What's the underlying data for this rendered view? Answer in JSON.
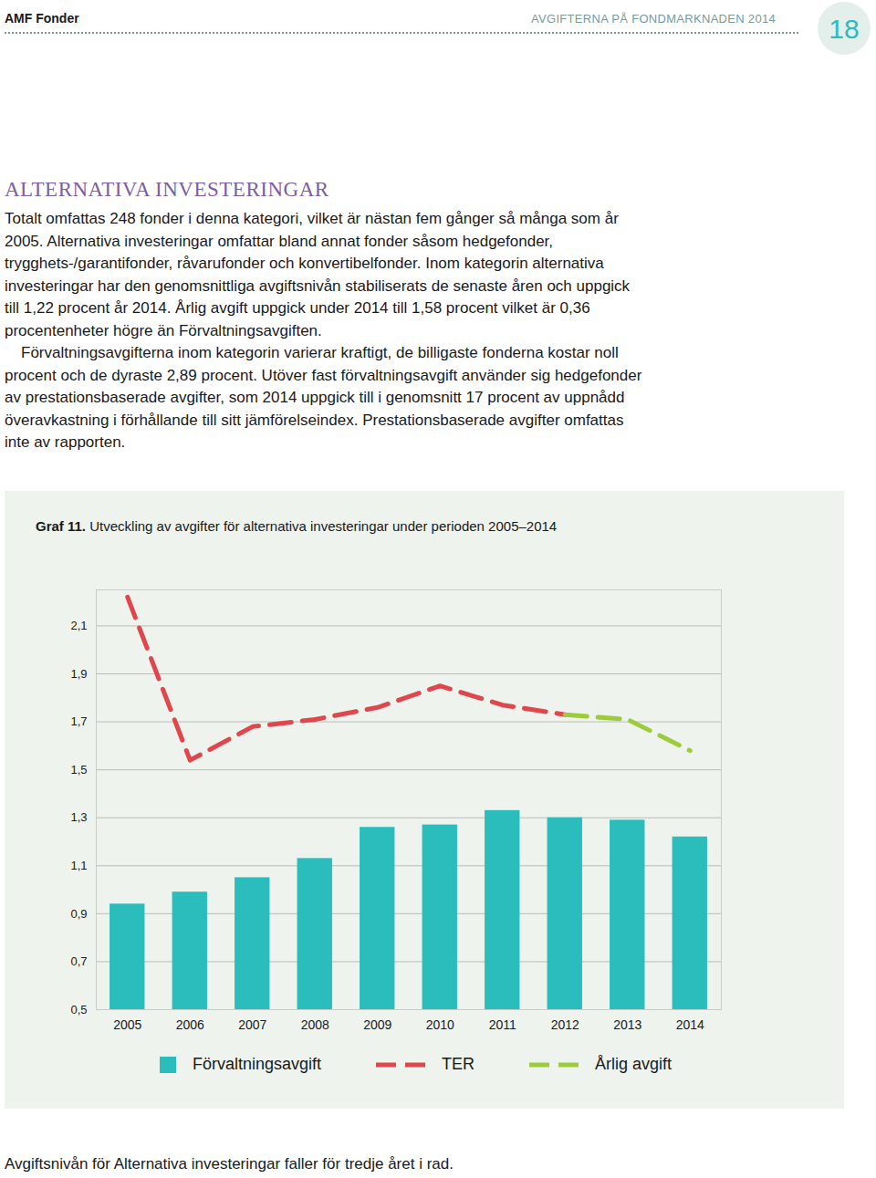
{
  "header": {
    "left": "AMF Fonder",
    "right": "AVGIFTERNA PÅ FONDMARKNADEN 2014",
    "page": "18"
  },
  "heading": "ALTERNATIVA INVESTERINGAR",
  "paragraphs": [
    "Totalt omfattas 248 fonder i denna kategori, vilket är nästan fem gånger så många som år 2005. Alternativa investeringar omfattar bland annat fonder såsom hedgefonder, trygghets-/garantifonder, råvarufonder och konvertibelfonder. Inom kategorin alternativa investeringar har den genomsnittliga avgiftsnivån stabiliserats de senaste åren och uppgick till 1,22 procent år 2014. Årlig avgift uppgick under 2014 till 1,58 procent vilket är 0,36 procentenheter högre än Förvaltningsavgiften.",
    "Förvaltningsavgifterna inom kategorin varierar kraftigt, de billigaste fonderna kostar noll procent och de dyraste 2,89 procent. Utöver fast förvaltningsavgift använder sig hedgefonder av prestationsbaserade avgifter, som 2014 uppgick till i genomsnitt 17 procent av uppnådd överavkastning i förhållande till sitt jämförelseindex. Prestationsbaserade avgifter omfattas inte av rapporten."
  ],
  "chart_data": {
    "type": "bar",
    "title": "Graf 11.",
    "subtitle": "Utveckling av avgifter för alternativa investeringar under perioden 2005–2014",
    "categories": [
      "2005",
      "2006",
      "2007",
      "2008",
      "2009",
      "2010",
      "2011",
      "2012",
      "2013",
      "2014"
    ],
    "series": [
      {
        "name": "Förvaltningsavgift",
        "type": "bar",
        "color": "#2bbcbc",
        "values": [
          0.94,
          0.99,
          1.05,
          1.13,
          1.26,
          1.27,
          1.33,
          1.3,
          1.29,
          1.22
        ]
      },
      {
        "name": "TER",
        "type": "line",
        "line_style": "dashed",
        "color": "#e0474c",
        "values": [
          2.22,
          1.54,
          1.68,
          1.71,
          1.76,
          1.85,
          1.77,
          1.73,
          null,
          null
        ]
      },
      {
        "name": "Årlig avgift",
        "type": "line",
        "line_style": "dashed",
        "color": "#9ccc3c",
        "values": [
          null,
          null,
          null,
          null,
          null,
          null,
          null,
          1.73,
          1.71,
          1.58
        ]
      }
    ],
    "ylim": [
      0.5,
      2.25
    ],
    "yticks": [
      {
        "value": 0.5,
        "label": "0,5"
      },
      {
        "value": 0.7,
        "label": "0,7"
      },
      {
        "value": 0.9,
        "label": "0,9"
      },
      {
        "value": 1.1,
        "label": "1,1"
      },
      {
        "value": 1.3,
        "label": "1,3"
      },
      {
        "value": 1.5,
        "label": "1,5"
      },
      {
        "value": 1.7,
        "label": "1,7"
      },
      {
        "value": 1.9,
        "label": "1,9"
      },
      {
        "value": 2.1,
        "label": "2,1"
      }
    ],
    "grid": true,
    "legend": "bottom"
  },
  "footer": "Avgiftsnivån för Alternativa investeringar faller för tredje året i rad."
}
